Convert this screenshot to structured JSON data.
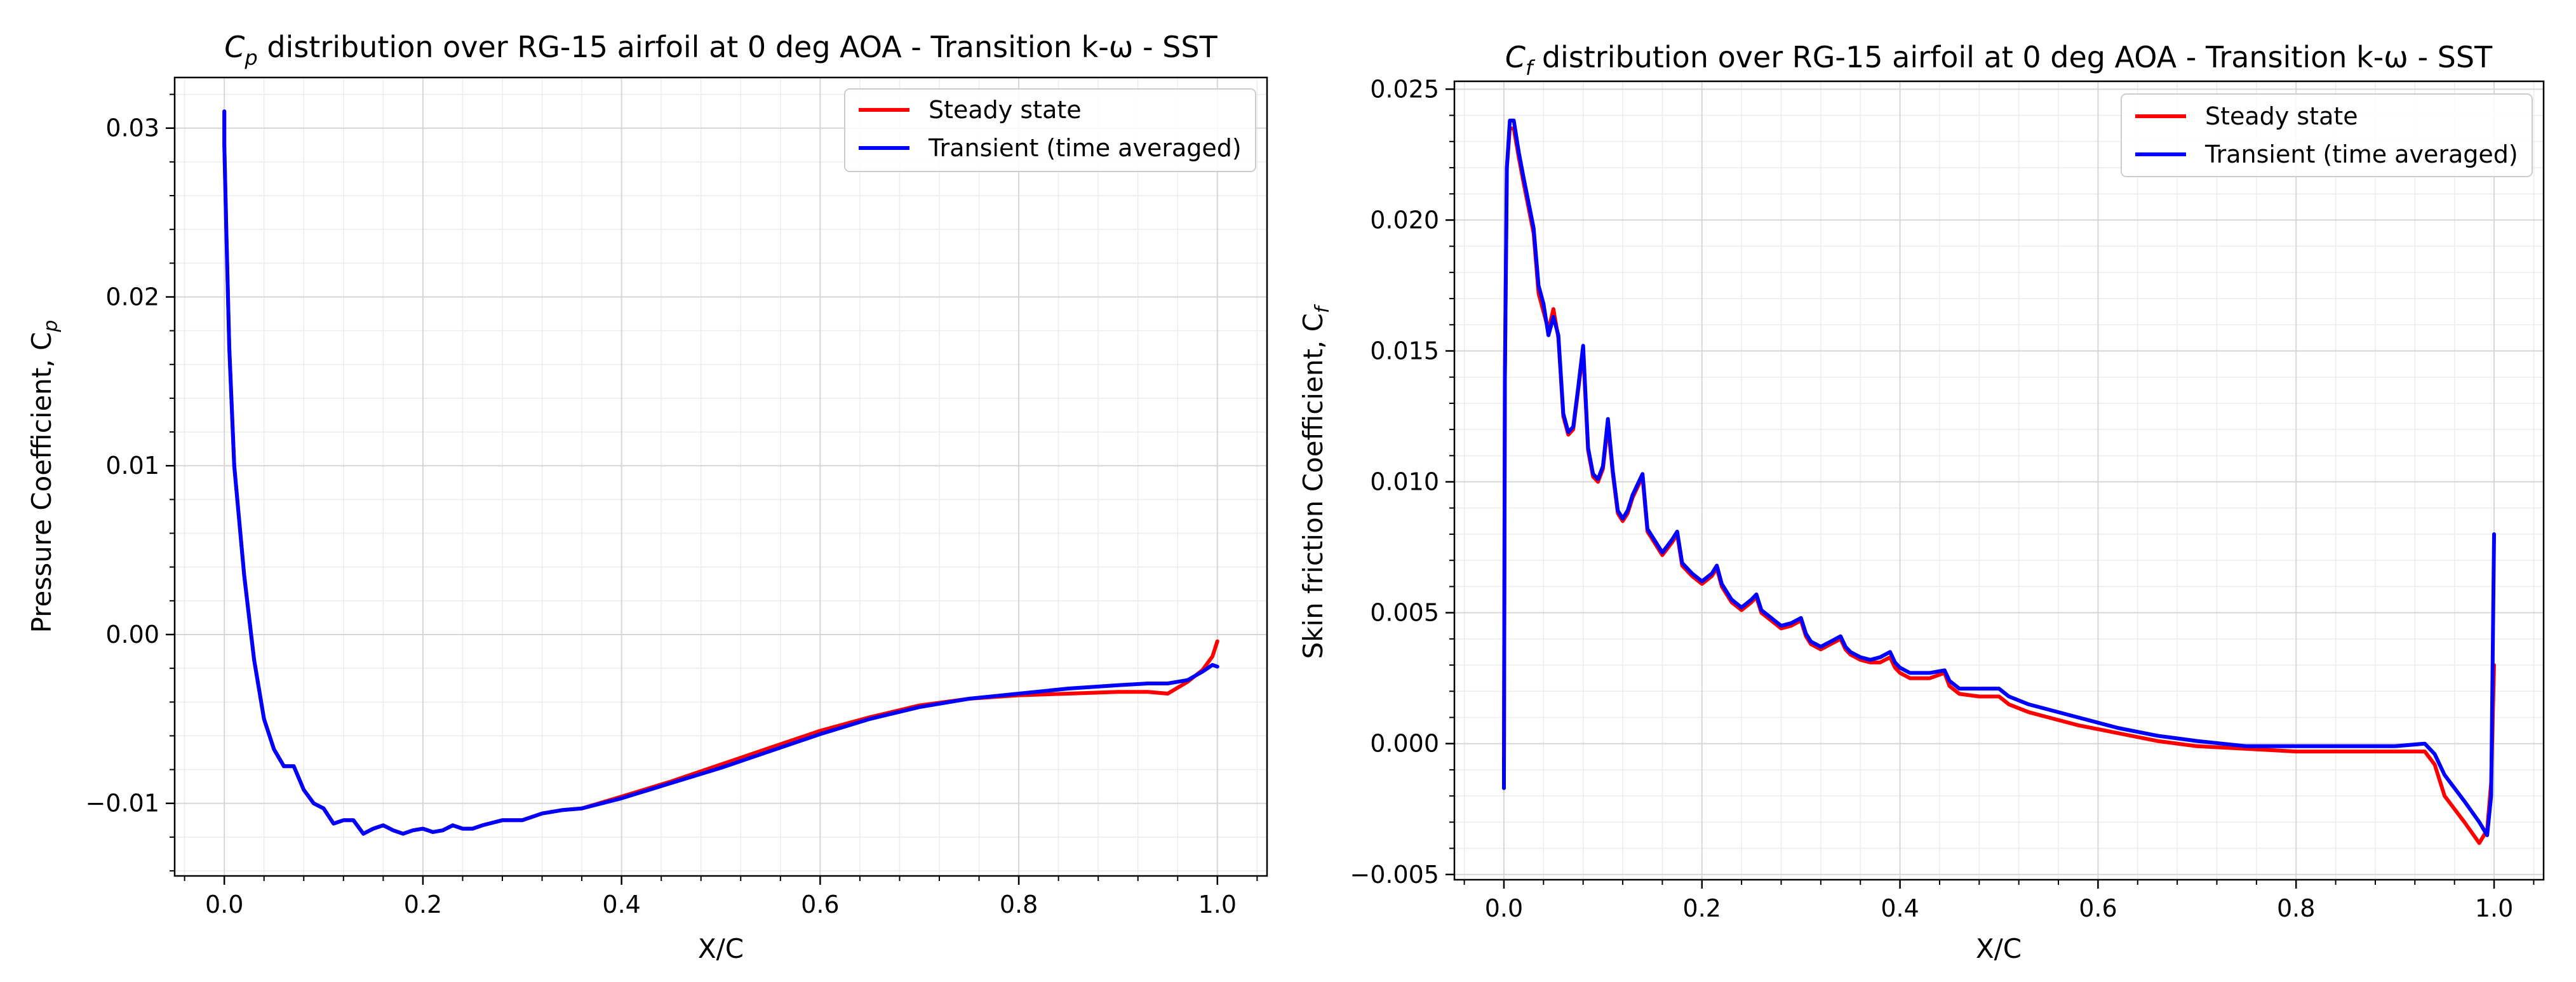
{
  "chart_data": [
    {
      "type": "line",
      "title_main": "C",
      "title_sub": "p",
      "title_rest": " distribution over RG-15 airfoil at 0 deg AOA - Transition k-ω - SST",
      "xlabel": "X/C",
      "ylabel_main": "Pressure Coefficient, C",
      "ylabel_sub": "p",
      "xlim": [
        -0.05,
        1.05
      ],
      "ylim": [
        -0.0143,
        0.033
      ],
      "xticks": [
        0.0,
        0.2,
        0.4,
        0.6,
        0.8,
        1.0
      ],
      "xtick_labels": [
        "0.0",
        "0.2",
        "0.4",
        "0.6",
        "0.8",
        "1.0"
      ],
      "yticks": [
        -0.01,
        0.0,
        0.01,
        0.02,
        0.03
      ],
      "ytick_labels": [
        "−0.01",
        "0.00",
        "0.01",
        "0.02",
        "0.03"
      ],
      "grid": true,
      "legend_position": "upper-right",
      "series": [
        {
          "name": "Steady state",
          "color": "#ff0000",
          "x": [
            0.0,
            0.0,
            0.002,
            0.005,
            0.01,
            0.02,
            0.03,
            0.04,
            0.05,
            0.06,
            0.07,
            0.08,
            0.09,
            0.1,
            0.11,
            0.12,
            0.13,
            0.14,
            0.15,
            0.16,
            0.17,
            0.18,
            0.19,
            0.2,
            0.21,
            0.22,
            0.23,
            0.24,
            0.25,
            0.26,
            0.28,
            0.3,
            0.32,
            0.34,
            0.36,
            0.4,
            0.45,
            0.5,
            0.55,
            0.6,
            0.65,
            0.7,
            0.75,
            0.8,
            0.85,
            0.9,
            0.93,
            0.95,
            0.97,
            0.985,
            0.995,
            1.0
          ],
          "y": [
            0.031,
            0.029,
            0.024,
            0.017,
            0.01,
            0.0035,
            -0.0015,
            -0.005,
            -0.0068,
            -0.0078,
            -0.0078,
            -0.0092,
            -0.01,
            -0.0103,
            -0.0112,
            -0.011,
            -0.011,
            -0.0118,
            -0.0115,
            -0.0113,
            -0.0116,
            -0.0118,
            -0.0116,
            -0.0115,
            -0.0117,
            -0.0116,
            -0.0113,
            -0.0115,
            -0.0115,
            -0.0113,
            -0.011,
            -0.011,
            -0.0106,
            -0.0104,
            -0.0103,
            -0.0096,
            -0.0087,
            -0.0077,
            -0.0067,
            -0.0057,
            -0.0049,
            -0.0042,
            -0.0038,
            -0.0036,
            -0.0035,
            -0.0034,
            -0.0034,
            -0.0035,
            -0.0028,
            -0.0021,
            -0.0013,
            -0.0004
          ]
        },
        {
          "name": "Transient (time averaged)",
          "color": "#0000ff",
          "x": [
            0.0,
            0.0,
            0.002,
            0.005,
            0.01,
            0.02,
            0.03,
            0.04,
            0.05,
            0.06,
            0.07,
            0.08,
            0.09,
            0.1,
            0.11,
            0.12,
            0.13,
            0.14,
            0.15,
            0.16,
            0.17,
            0.18,
            0.19,
            0.2,
            0.21,
            0.22,
            0.23,
            0.24,
            0.25,
            0.26,
            0.28,
            0.3,
            0.32,
            0.34,
            0.36,
            0.4,
            0.45,
            0.5,
            0.55,
            0.6,
            0.65,
            0.7,
            0.75,
            0.8,
            0.85,
            0.9,
            0.93,
            0.95,
            0.97,
            0.985,
            0.995,
            1.0
          ],
          "y": [
            0.031,
            0.029,
            0.024,
            0.017,
            0.01,
            0.0035,
            -0.0015,
            -0.005,
            -0.0068,
            -0.0078,
            -0.0078,
            -0.0092,
            -0.01,
            -0.0103,
            -0.0112,
            -0.011,
            -0.011,
            -0.0118,
            -0.0115,
            -0.0113,
            -0.0116,
            -0.0118,
            -0.0116,
            -0.0115,
            -0.0117,
            -0.0116,
            -0.0113,
            -0.0115,
            -0.0115,
            -0.0113,
            -0.011,
            -0.011,
            -0.0106,
            -0.0104,
            -0.0103,
            -0.0097,
            -0.0088,
            -0.0079,
            -0.0069,
            -0.0059,
            -0.005,
            -0.0043,
            -0.0038,
            -0.0035,
            -0.0032,
            -0.003,
            -0.0029,
            -0.0029,
            -0.0027,
            -0.0022,
            -0.0018,
            -0.0019
          ]
        }
      ]
    },
    {
      "type": "line",
      "title_main": "C",
      "title_sub": "f",
      "title_rest": " distribution over RG-15 airfoil at 0 deg AOA - Transition k-ω - SST",
      "xlabel": "X/C",
      "ylabel_main": "Skin friction Coefficient, C",
      "ylabel_sub": "f",
      "xlim": [
        -0.05,
        1.05
      ],
      "ylim": [
        -0.0052,
        0.0253
      ],
      "xticks": [
        0.0,
        0.2,
        0.4,
        0.6,
        0.8,
        1.0
      ],
      "xtick_labels": [
        "0.0",
        "0.2",
        "0.4",
        "0.6",
        "0.8",
        "1.0"
      ],
      "yticks": [
        -0.005,
        0.0,
        0.005,
        0.01,
        0.015,
        0.02,
        0.025
      ],
      "ytick_labels": [
        "−0.005",
        "0.000",
        "0.005",
        "0.010",
        "0.015",
        "0.020",
        "0.025"
      ],
      "grid": true,
      "legend_position": "upper-right",
      "series": [
        {
          "name": "Steady state",
          "color": "#ff0000",
          "x": [
            0.0,
            0.0,
            0.001,
            0.003,
            0.006,
            0.01,
            0.015,
            0.02,
            0.03,
            0.035,
            0.04,
            0.045,
            0.05,
            0.055,
            0.06,
            0.065,
            0.07,
            0.075,
            0.08,
            0.085,
            0.09,
            0.095,
            0.1,
            0.105,
            0.11,
            0.115,
            0.12,
            0.125,
            0.13,
            0.14,
            0.145,
            0.15,
            0.16,
            0.17,
            0.175,
            0.18,
            0.19,
            0.2,
            0.21,
            0.215,
            0.22,
            0.23,
            0.24,
            0.25,
            0.255,
            0.26,
            0.27,
            0.28,
            0.29,
            0.3,
            0.305,
            0.31,
            0.32,
            0.33,
            0.34,
            0.345,
            0.35,
            0.36,
            0.37,
            0.38,
            0.39,
            0.395,
            0.4,
            0.41,
            0.43,
            0.445,
            0.45,
            0.46,
            0.48,
            0.5,
            0.51,
            0.53,
            0.55,
            0.58,
            0.62,
            0.66,
            0.7,
            0.75,
            0.8,
            0.85,
            0.9,
            0.93,
            0.94,
            0.95,
            0.97,
            0.985,
            0.993,
            0.997,
            1.0
          ],
          "y": [
            -0.0017,
            -0.0012,
            0.014,
            0.022,
            0.0235,
            0.0235,
            0.0224,
            0.0214,
            0.0195,
            0.0172,
            0.0165,
            0.0158,
            0.0166,
            0.0155,
            0.0125,
            0.0118,
            0.012,
            0.0135,
            0.015,
            0.0112,
            0.0102,
            0.01,
            0.0105,
            0.0122,
            0.0103,
            0.0088,
            0.0085,
            0.0088,
            0.0094,
            0.0102,
            0.0081,
            0.0078,
            0.0072,
            0.0077,
            0.008,
            0.0068,
            0.0064,
            0.0061,
            0.0064,
            0.0067,
            0.006,
            0.0054,
            0.0051,
            0.0054,
            0.0056,
            0.005,
            0.0047,
            0.0044,
            0.0045,
            0.0047,
            0.0041,
            0.0038,
            0.0036,
            0.0038,
            0.004,
            0.0036,
            0.0034,
            0.0032,
            0.0031,
            0.0031,
            0.0033,
            0.0029,
            0.0027,
            0.0025,
            0.0025,
            0.0027,
            0.0022,
            0.0019,
            0.0018,
            0.0018,
            0.0015,
            0.0012,
            0.001,
            0.0007,
            0.0004,
            0.0001,
            -0.0001,
            -0.0002,
            -0.0003,
            -0.0003,
            -0.0003,
            -0.0003,
            -0.0008,
            -0.002,
            -0.003,
            -0.0038,
            -0.0033,
            -0.0015,
            0.003
          ]
        },
        {
          "name": "Transient (time averaged)",
          "color": "#0000ff",
          "x": [
            0.0,
            0.0,
            0.001,
            0.003,
            0.006,
            0.01,
            0.015,
            0.02,
            0.03,
            0.035,
            0.04,
            0.045,
            0.05,
            0.055,
            0.06,
            0.065,
            0.07,
            0.075,
            0.08,
            0.085,
            0.09,
            0.095,
            0.1,
            0.105,
            0.11,
            0.115,
            0.12,
            0.125,
            0.13,
            0.14,
            0.145,
            0.15,
            0.16,
            0.17,
            0.175,
            0.18,
            0.19,
            0.2,
            0.21,
            0.215,
            0.22,
            0.23,
            0.24,
            0.25,
            0.255,
            0.26,
            0.27,
            0.28,
            0.29,
            0.3,
            0.305,
            0.31,
            0.32,
            0.33,
            0.34,
            0.345,
            0.35,
            0.36,
            0.37,
            0.38,
            0.39,
            0.395,
            0.4,
            0.41,
            0.43,
            0.445,
            0.45,
            0.46,
            0.48,
            0.5,
            0.51,
            0.53,
            0.55,
            0.58,
            0.62,
            0.66,
            0.7,
            0.75,
            0.8,
            0.85,
            0.9,
            0.93,
            0.94,
            0.95,
            0.97,
            0.985,
            0.993,
            0.997,
            1.0
          ],
          "y": [
            -0.0017,
            -0.0012,
            0.014,
            0.022,
            0.0238,
            0.0238,
            0.0226,
            0.0216,
            0.0197,
            0.0175,
            0.0168,
            0.0156,
            0.0163,
            0.0156,
            0.0126,
            0.0119,
            0.0121,
            0.0136,
            0.0152,
            0.0113,
            0.0103,
            0.0101,
            0.0106,
            0.0124,
            0.0104,
            0.0089,
            0.0086,
            0.0089,
            0.0095,
            0.0103,
            0.0082,
            0.0079,
            0.0073,
            0.0078,
            0.0081,
            0.0069,
            0.0065,
            0.0062,
            0.0065,
            0.0068,
            0.0061,
            0.0055,
            0.0052,
            0.0055,
            0.0057,
            0.0051,
            0.0048,
            0.0045,
            0.0046,
            0.0048,
            0.0042,
            0.0039,
            0.0037,
            0.0039,
            0.0041,
            0.0037,
            0.0035,
            0.0033,
            0.0032,
            0.0033,
            0.0035,
            0.0031,
            0.0029,
            0.0027,
            0.0027,
            0.0028,
            0.0024,
            0.0021,
            0.0021,
            0.0021,
            0.0018,
            0.0015,
            0.0013,
            0.001,
            0.0006,
            0.0003,
            0.0001,
            -0.0001,
            -0.0001,
            -0.0001,
            -0.0001,
            0.0,
            -0.0004,
            -0.0012,
            -0.0022,
            -0.003,
            -0.0035,
            -0.002,
            0.008
          ]
        }
      ]
    }
  ]
}
